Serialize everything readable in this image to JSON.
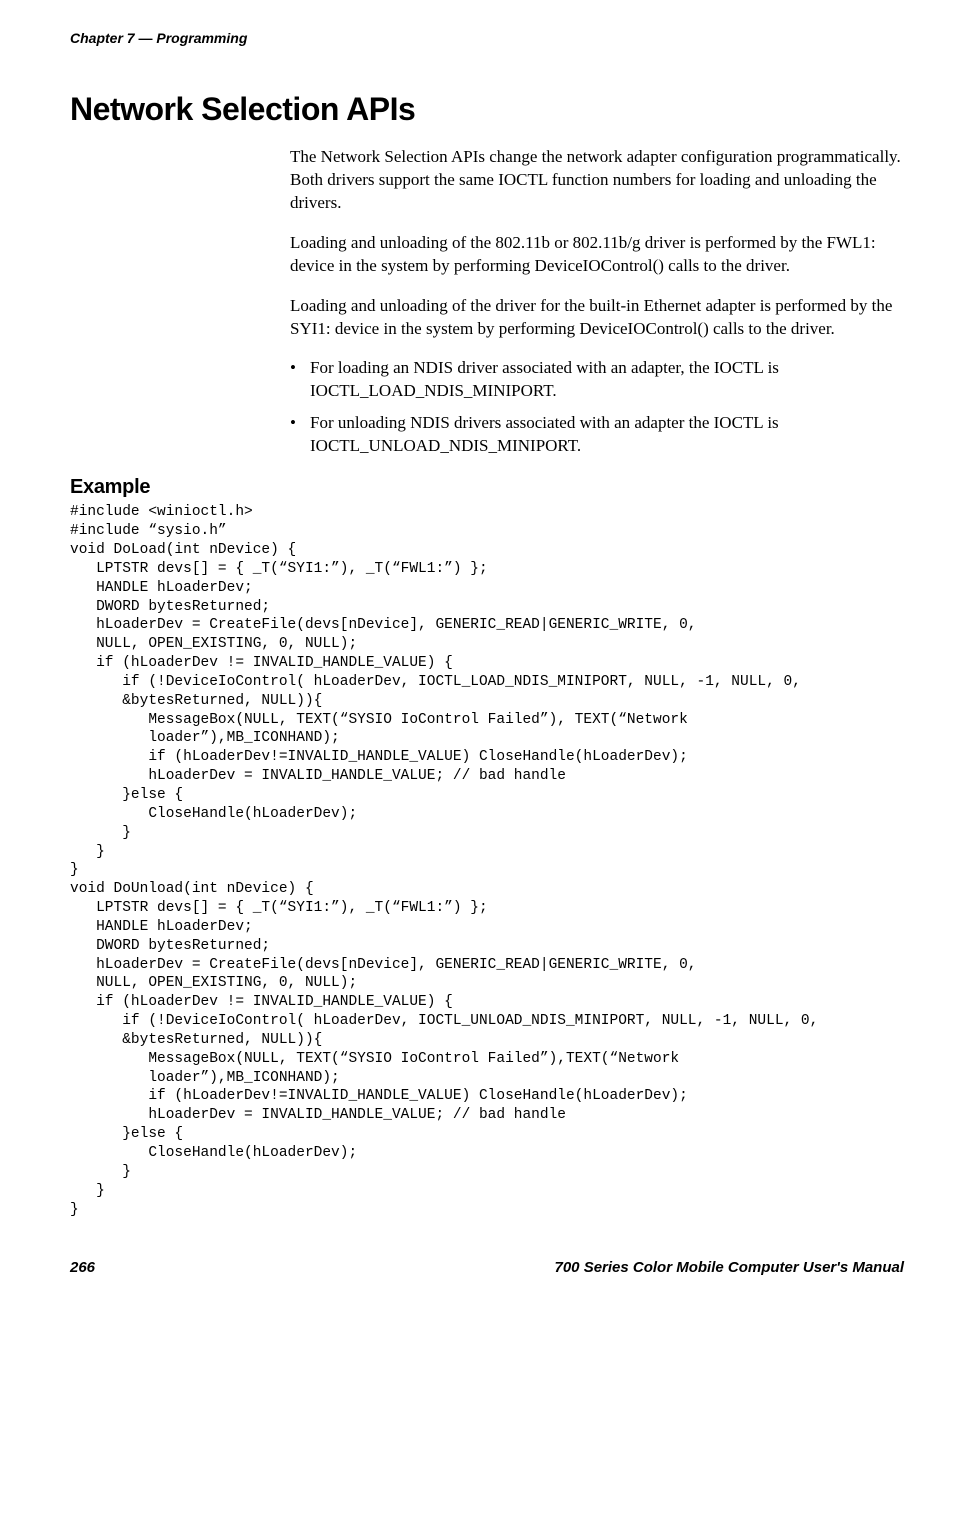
{
  "header": {
    "chapter": "Chapter 7",
    "separator": "—",
    "section": "Programming"
  },
  "h1": "Network Selection APIs",
  "para1": "The Network Selection APIs change the network adapter configuration programmatically. Both drivers support the same IOCTL function numbers for loading and unloading the drivers.",
  "para2": "Loading and unloading of the 802.11b or 802.11b/g driver is performed by the FWL1: device in the system by performing DeviceIOControl() calls to the driver.",
  "para3": "Loading and unloading of the driver for the built-in Ethernet adapter is performed by the SYI1: device in the system by performing DeviceIOControl() calls to the driver.",
  "bullets": [
    "For loading an NDIS driver associated with an adapter, the IOCTL is IOCTL_LOAD_NDIS_MINIPORT.",
    "For unloading NDIS drivers associated with an adapter the IOCTL is IOCTL_UNLOAD_NDIS_MINIPORT."
  ],
  "h2": "Example",
  "code": "#include <winioctl.h>\n#include “sysio.h”\nvoid DoLoad(int nDevice) {\n   LPTSTR devs[] = { _T(“SYI1:”), _T(“FWL1:”) };\n   HANDLE hLoaderDev;\n   DWORD bytesReturned;\n   hLoaderDev = CreateFile(devs[nDevice], GENERIC_READ|GENERIC_WRITE, 0,\n   NULL, OPEN_EXISTING, 0, NULL);\n   if (hLoaderDev != INVALID_HANDLE_VALUE) {\n      if (!DeviceIoControl( hLoaderDev, IOCTL_LOAD_NDIS_MINIPORT, NULL, -1, NULL, 0,\n      &bytesReturned, NULL)){\n         MessageBox(NULL, TEXT(“SYSIO IoControl Failed”), TEXT(“Network\n         loader”),MB_ICONHAND);\n         if (hLoaderDev!=INVALID_HANDLE_VALUE) CloseHandle(hLoaderDev);\n         hLoaderDev = INVALID_HANDLE_VALUE; // bad handle\n      }else {\n         CloseHandle(hLoaderDev);\n      }\n   }\n}\nvoid DoUnload(int nDevice) {\n   LPTSTR devs[] = { _T(“SYI1:”), _T(“FWL1:”) };\n   HANDLE hLoaderDev;\n   DWORD bytesReturned;\n   hLoaderDev = CreateFile(devs[nDevice], GENERIC_READ|GENERIC_WRITE, 0,\n   NULL, OPEN_EXISTING, 0, NULL);\n   if (hLoaderDev != INVALID_HANDLE_VALUE) {\n      if (!DeviceIoControl( hLoaderDev, IOCTL_UNLOAD_NDIS_MINIPORT, NULL, -1, NULL, 0,\n      &bytesReturned, NULL)){\n         MessageBox(NULL, TEXT(“SYSIO IoControl Failed”),TEXT(“Network\n         loader”),MB_ICONHAND);\n         if (hLoaderDev!=INVALID_HANDLE_VALUE) CloseHandle(hLoaderDev);\n         hLoaderDev = INVALID_HANDLE_VALUE; // bad handle\n      }else {\n         CloseHandle(hLoaderDev);\n      }\n   }\n}",
  "footer": {
    "page": "266",
    "title": "700 Series Color Mobile Computer User's Manual"
  }
}
